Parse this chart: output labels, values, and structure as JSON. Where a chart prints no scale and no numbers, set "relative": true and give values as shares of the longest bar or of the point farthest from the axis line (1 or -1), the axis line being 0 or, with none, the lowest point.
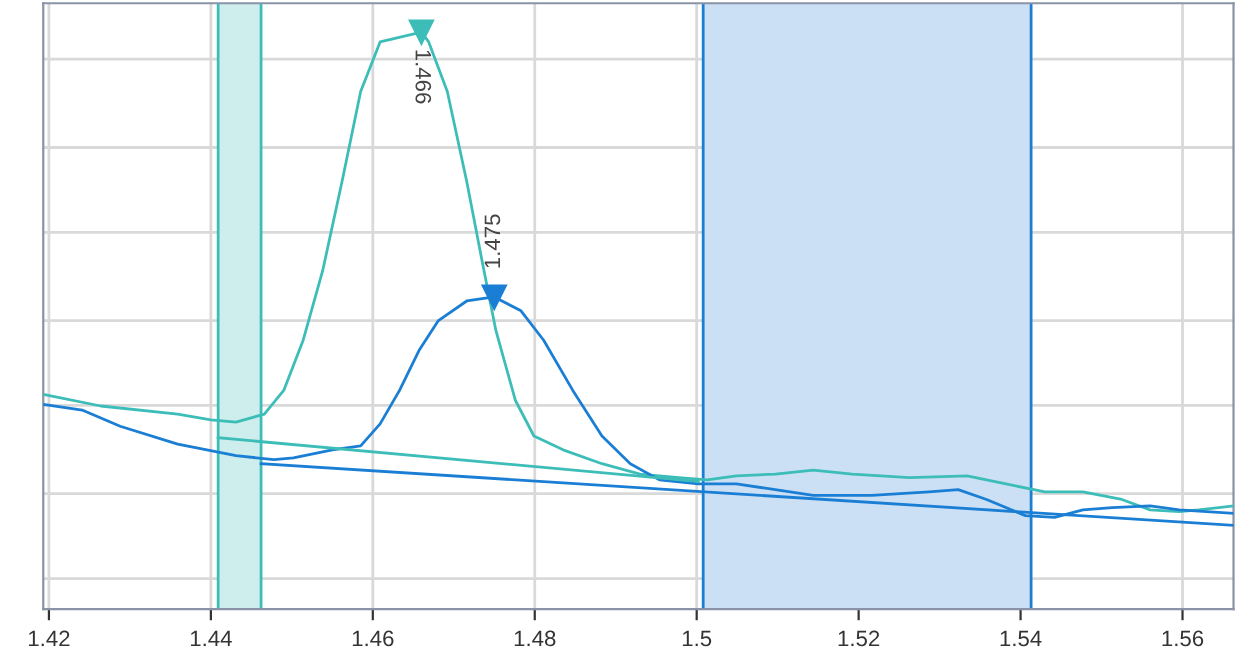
{
  "chart_data": {
    "type": "line",
    "relative": true,
    "xlim": [
      1.4193,
      1.5663
    ],
    "xticks": [
      1.42,
      1.44,
      1.46,
      1.48,
      1.5,
      1.52,
      1.54,
      1.56
    ],
    "grid": true,
    "tick_labels": "x",
    "marker": "none",
    "line_style": "solid",
    "series": [
      {
        "color": "#3dbdb8",
        "x": [
          1.4193,
          1.4264,
          1.4359,
          1.44,
          1.4431,
          1.4466,
          1.449,
          1.4514,
          1.4538,
          1.4562,
          1.4585,
          1.4609,
          1.466,
          1.4669,
          1.4692,
          1.4716,
          1.4735,
          1.4752,
          1.4776,
          1.4799,
          1.4835,
          1.4883,
          1.493,
          1.4978,
          1.5013,
          1.5049,
          1.5097,
          1.5144,
          1.5192,
          1.5263,
          1.5334,
          1.5382,
          1.543,
          1.5477,
          1.5525,
          1.556,
          1.5596,
          1.562,
          1.5663
        ],
        "values": [
          0.372,
          0.352,
          0.338,
          0.328,
          0.324,
          0.338,
          0.379,
          0.466,
          0.586,
          0.741,
          0.897,
          0.983,
          1,
          0.983,
          0.897,
          0.741,
          0.603,
          0.483,
          0.362,
          0.3,
          0.276,
          0.252,
          0.234,
          0.228,
          0.224,
          0.231,
          0.234,
          0.241,
          0.234,
          0.228,
          0.231,
          0.217,
          0.203,
          0.203,
          0.19,
          0.172,
          0.169,
          0.172,
          0.179
        ]
      },
      {
        "color": "#1a7fd4",
        "x": [
          1.4193,
          1.4241,
          1.4288,
          1.4359,
          1.4431,
          1.4478,
          1.4502,
          1.455,
          1.4585,
          1.4609,
          1.4633,
          1.4657,
          1.4681,
          1.4716,
          1.475,
          1.4783,
          1.4811,
          1.4847,
          1.4883,
          1.4918,
          1.4954,
          1.5002,
          1.5049,
          1.5097,
          1.5144,
          1.5216,
          1.5287,
          1.5323,
          1.5358,
          1.5406,
          1.5442,
          1.5477,
          1.5513,
          1.556,
          1.5596,
          1.5663
        ],
        "values": [
          0.355,
          0.345,
          0.317,
          0.286,
          0.266,
          0.259,
          0.262,
          0.276,
          0.283,
          0.321,
          0.379,
          0.448,
          0.5,
          0.534,
          0.541,
          0.517,
          0.466,
          0.379,
          0.3,
          0.252,
          0.224,
          0.217,
          0.217,
          0.207,
          0.197,
          0.197,
          0.203,
          0.207,
          0.19,
          0.162,
          0.159,
          0.172,
          0.176,
          0.179,
          0.172,
          0.166
        ]
      },
      {
        "color": "#3dbdb8",
        "x": [
          1.4409,
          1.5002
        ],
        "values": [
          0.297,
          0.221
        ]
      },
      {
        "color": "#1a7fd4",
        "x": [
          1.4462,
          1.5663
        ],
        "values": [
          0.252,
          0.145
        ]
      }
    ],
    "bands": [
      {
        "axis": "x",
        "from": 1.4409,
        "to": 1.4462,
        "color": "#cdeeed"
      },
      {
        "axis": "x",
        "from": 1.5008,
        "to": 1.5413,
        "color": "#cce0f5"
      }
    ],
    "ref_lines": [
      {
        "axis": "x",
        "value": 1.4409,
        "color": "#3dbdb8"
      },
      {
        "axis": "x",
        "value": 1.4462,
        "color": "#3dbdb8"
      },
      {
        "axis": "x",
        "value": 1.5008,
        "color": "#1a7fd4"
      },
      {
        "axis": "x",
        "value": 1.5413,
        "color": "#1a7fd4"
      }
    ],
    "annotations": [
      {
        "text": "1.466",
        "x": 1.466,
        "y": 1
      },
      {
        "text": "1.475",
        "x": 1.475,
        "y": 0.541
      }
    ]
  }
}
